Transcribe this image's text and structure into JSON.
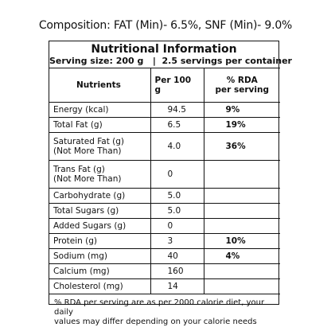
{
  "composition": "Composition: FAT (Min)- 6.5%, SNF (Min)- 9.0%",
  "panel": {
    "title": "Nutritional Information",
    "serving": "Serving size: 200 g   |  2.5 servings per container"
  },
  "table": {
    "headers": {
      "nutrients": "Nutrients",
      "per100": "Per 100 g",
      "rda_line1": "% RDA",
      "rda_line2": "per serving"
    },
    "rows": [
      {
        "name1": "Energy (kcal)",
        "name2": "",
        "per100": "94.5",
        "rda": "9%"
      },
      {
        "name1": "Total Fat (g)",
        "name2": "",
        "per100": "6.5",
        "rda": "19%"
      },
      {
        "name1": "Saturated Fat (g)",
        "name2": "(Not More Than)",
        "per100": "4.0",
        "rda": "36%"
      },
      {
        "name1": "Trans Fat (g)",
        "name2": "(Not More Than)",
        "per100": "0",
        "rda": ""
      },
      {
        "name1": "Carbohydrate (g)",
        "name2": "",
        "per100": "5.0",
        "rda": ""
      },
      {
        "name1": "Total Sugars (g)",
        "name2": "",
        "per100": "5.0",
        "rda": ""
      },
      {
        "name1": "Added Sugars (g)",
        "name2": "",
        "per100": "0",
        "rda": ""
      },
      {
        "name1": "Protein (g)",
        "name2": "",
        "per100": "3",
        "rda": "10%"
      },
      {
        "name1": "Sodium (mg)",
        "name2": "",
        "per100": "40",
        "rda": "4%"
      },
      {
        "name1": "Calcium (mg)",
        "name2": "",
        "per100": "160",
        "rda": ""
      },
      {
        "name1": "Cholesterol (mg)",
        "name2": "",
        "per100": "14",
        "rda": ""
      }
    ],
    "footnote_line1": "% RDA per serving are as per 2000 calorie diet, your daily",
    "footnote_line2": "values may differ depending on your calorie needs"
  }
}
